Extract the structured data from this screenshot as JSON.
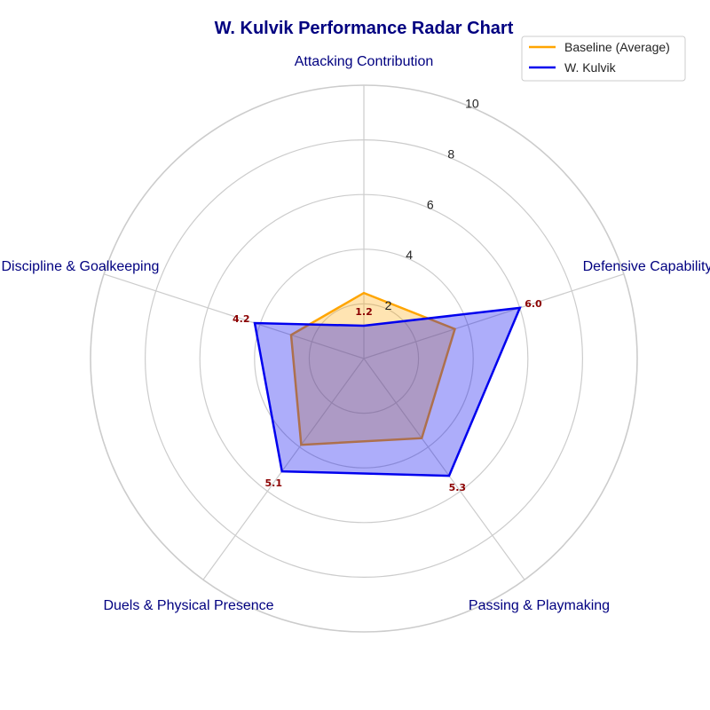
{
  "chart_data": {
    "type": "radar",
    "title": "W. Kulvik Performance Radar Chart",
    "categories": [
      "Attacking Contribution",
      "Defensive Capability",
      "Passing & Playmaking",
      "Duels & Physical Presence",
      "Discipline & Goalkeeping"
    ],
    "rlim": [
      0,
      10
    ],
    "rticks": [
      2,
      4,
      6,
      8,
      10
    ],
    "grid": true,
    "legend_position": "top-right",
    "series": [
      {
        "name": "Baseline (Average)",
        "values": [
          2.4,
          3.5,
          3.6,
          3.9,
          2.8
        ],
        "color": "#FFA500"
      },
      {
        "name": "W. Kulvik",
        "values": [
          1.2,
          6.0,
          5.3,
          5.1,
          4.2
        ],
        "data_labels": [
          "1.2",
          "6.0",
          "5.3",
          "5.1",
          "4.2"
        ],
        "color": "#0000EE"
      }
    ],
    "colors": {
      "title": "#000080",
      "axis_label": "#000080",
      "data_label": "#8B0000",
      "grid": "#CCCCCC"
    }
  }
}
